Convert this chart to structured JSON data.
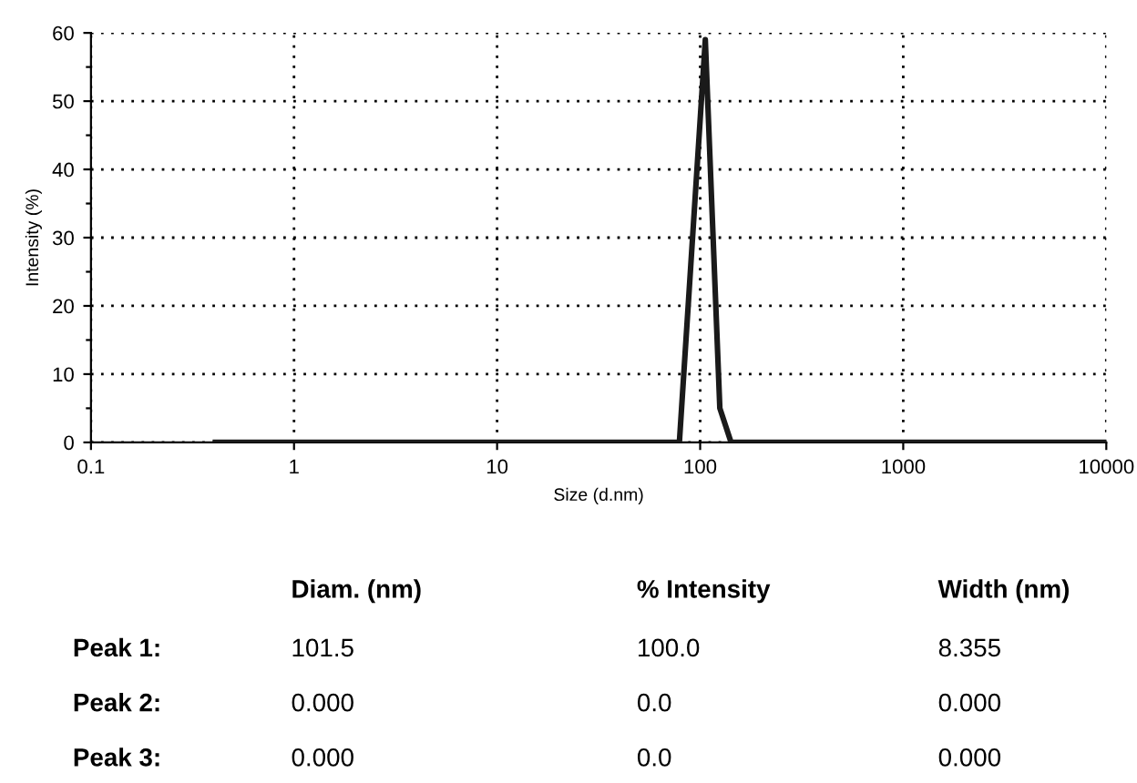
{
  "chart_data": {
    "type": "line",
    "xlabel": "Size (d.nm)",
    "ylabel": "Intensity (%)",
    "log": "x",
    "xlim": [
      0.1,
      10000
    ],
    "xticks": [
      0.1,
      1,
      10,
      100,
      1000,
      10000
    ],
    "ylim": [
      0,
      60
    ],
    "yticks": [
      0,
      {
        "value": 5,
        "label": null
      },
      10,
      {
        "value": 15,
        "label": null
      },
      20,
      {
        "value": 25,
        "label": null
      },
      30,
      {
        "value": 35,
        "label": null
      },
      40,
      {
        "value": 45,
        "label": null
      },
      50,
      {
        "value": 55,
        "label": null
      },
      60
    ],
    "grid": true,
    "marker": "none",
    "line_style": "solid",
    "series": [
      {
        "color": "#1a1a1a",
        "x": [
          0.41,
          79,
          106,
          125,
          142,
          10000
        ],
        "values": [
          0,
          0,
          59,
          5,
          0,
          0
        ]
      }
    ],
    "annotations": [
      "Diam. (nm)",
      "% Intensity",
      "Width (nm)",
      "Peak 1:",
      "101.5",
      "100.0",
      "8.355",
      "Peak 2:",
      "0.000",
      "0.0",
      "0.000",
      "Peak 3:",
      "0.000",
      "0.0",
      "0.000"
    ]
  }
}
